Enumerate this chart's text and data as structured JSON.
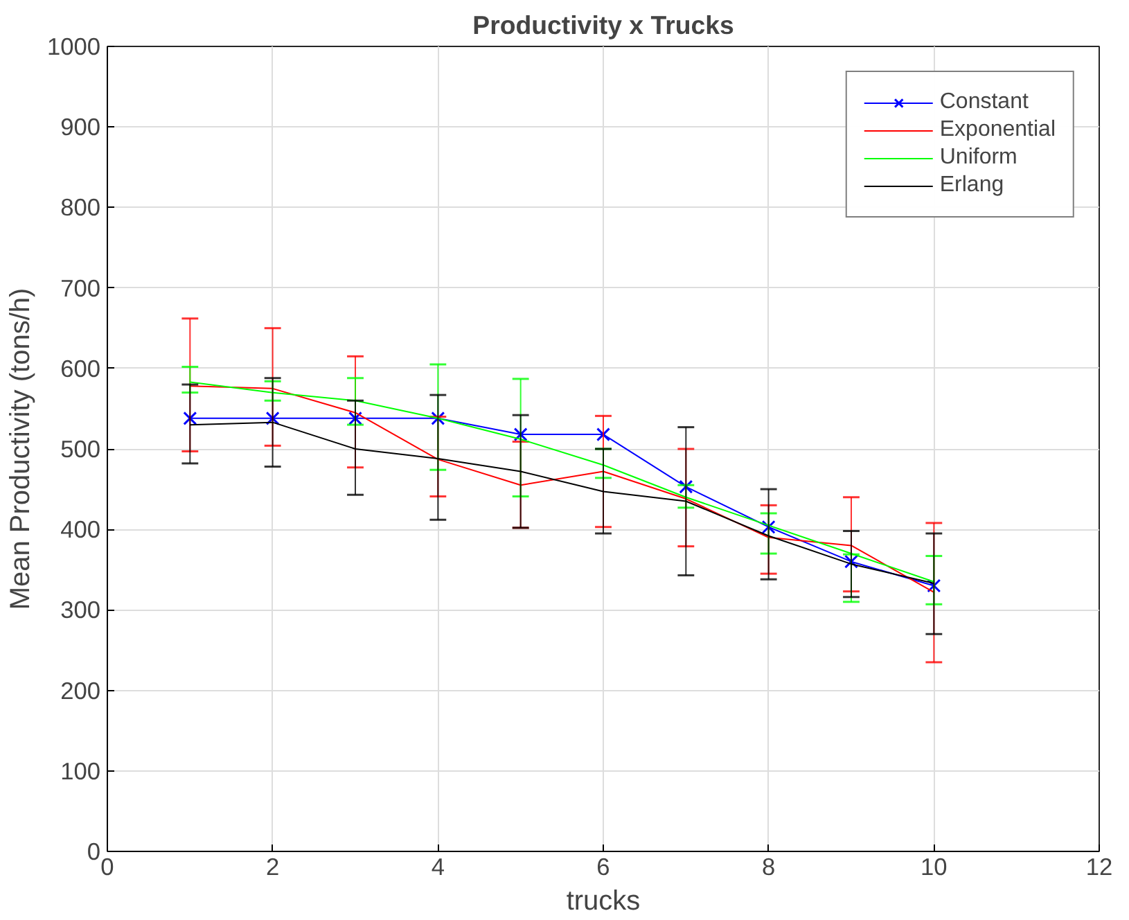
{
  "chart_data": {
    "type": "line",
    "title": "Productivity x Trucks",
    "xlabel": "trucks",
    "ylabel": "Mean Productivity (tons/h)",
    "x": [
      1,
      2,
      3,
      4,
      5,
      6,
      7,
      8,
      9,
      10
    ],
    "series": [
      {
        "name": "Constant",
        "color": "#0000ff",
        "marker": "cross",
        "values": [
          538,
          538,
          538,
          538,
          518,
          518,
          453,
          403,
          360,
          330
        ]
      },
      {
        "name": "Exponential",
        "color": "#ff0000",
        "marker": "none",
        "values": [
          578,
          575,
          545,
          487,
          455,
          472,
          438,
          390,
          380,
          322
        ],
        "errors": [
          [
            497,
            662
          ],
          [
            504,
            650
          ],
          [
            477,
            615
          ],
          [
            441,
            540
          ],
          [
            402,
            509
          ],
          [
            403,
            541
          ],
          [
            379,
            500
          ],
          [
            345,
            430
          ],
          [
            323,
            440
          ],
          [
            235,
            408
          ]
        ]
      },
      {
        "name": "Uniform",
        "color": "#00ff00",
        "marker": "none",
        "values": [
          583,
          570,
          560,
          538,
          512,
          480,
          440,
          405,
          370,
          335
        ],
        "errors": [
          [
            570,
            602
          ],
          [
            560,
            584
          ],
          [
            530,
            588
          ],
          [
            474,
            605
          ],
          [
            441,
            587
          ],
          [
            464,
            500
          ],
          [
            427,
            455
          ],
          [
            370,
            420
          ],
          [
            310,
            369
          ],
          [
            307,
            367
          ]
        ]
      },
      {
        "name": "Erlang",
        "color": "#000000",
        "marker": "none",
        "values": [
          530,
          533,
          500,
          488,
          472,
          447,
          435,
          392,
          357,
          333
        ],
        "errors": [
          [
            482,
            580
          ],
          [
            478,
            588
          ],
          [
            443,
            560
          ],
          [
            412,
            567
          ],
          [
            402,
            542
          ],
          [
            395,
            500
          ],
          [
            343,
            527
          ],
          [
            338,
            450
          ],
          [
            316,
            398
          ],
          [
            270,
            395
          ]
        ]
      }
    ],
    "xlim": [
      0,
      12
    ],
    "xticks": [
      0,
      2,
      4,
      6,
      8,
      10,
      12
    ],
    "ylim": [
      0,
      1000
    ],
    "yticks": [
      0,
      100,
      200,
      300,
      400,
      500,
      600,
      700,
      800,
      900,
      1000
    ],
    "grid": true,
    "legend": "top right",
    "line_style": "solid"
  }
}
